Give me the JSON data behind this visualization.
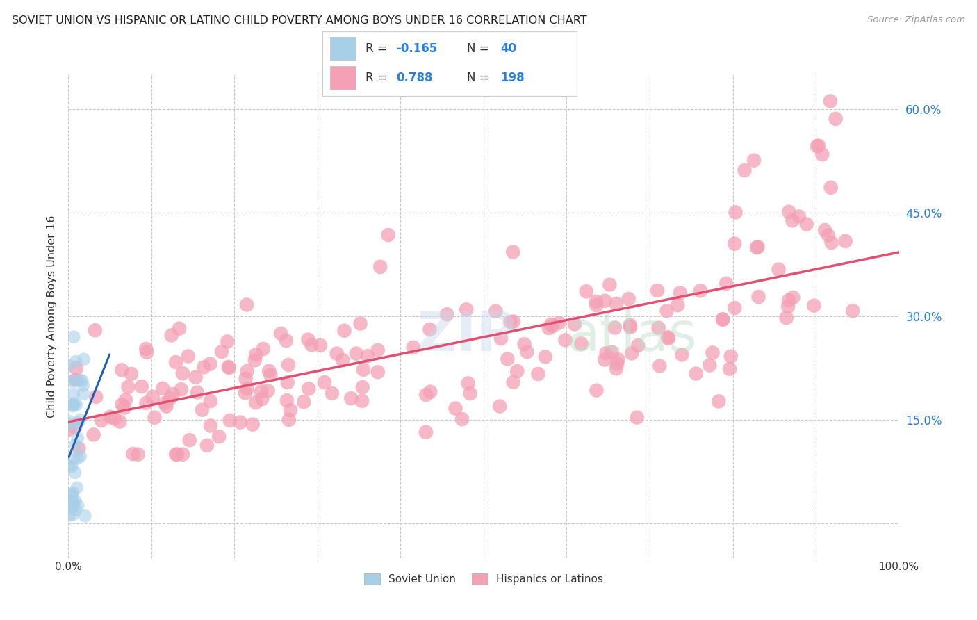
{
  "title": "SOVIET UNION VS HISPANIC OR LATINO CHILD POVERTY AMONG BOYS UNDER 16 CORRELATION CHART",
  "source": "Source: ZipAtlas.com",
  "ylabel": "Child Poverty Among Boys Under 16",
  "xlim": [
    0,
    1.0
  ],
  "ylim": [
    -0.05,
    0.65
  ],
  "x_ticks": [
    0.0,
    0.1,
    0.2,
    0.3,
    0.4,
    0.5,
    0.6,
    0.7,
    0.8,
    0.9,
    1.0
  ],
  "y_ticks": [
    0.0,
    0.15,
    0.3,
    0.45,
    0.6
  ],
  "y_tick_labels": [
    "",
    "15.0%",
    "30.0%",
    "45.0%",
    "60.0%"
  ],
  "soviet_color": "#a8cfe8",
  "hispanic_color": "#f4a0b5",
  "soviet_line_color": "#2060b0",
  "hispanic_line_color": "#e05070",
  "soviet_R": -0.165,
  "soviet_N": 40,
  "hispanic_R": 0.788,
  "hispanic_N": 198,
  "legend_labels": [
    "Soviet Union",
    "Hispanics or Latinos"
  ],
  "background_color": "#ffffff",
  "grid_color": "#c8c8c8"
}
